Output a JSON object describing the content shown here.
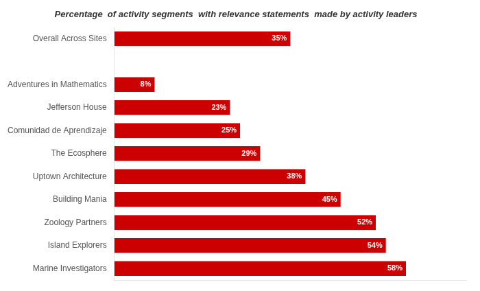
{
  "chart_data": {
    "type": "bar",
    "orientation": "horizontal",
    "title": "Percentage  of activity segments  with relevance statements  made by activity leaders",
    "categories": [
      "Overall Across Sites",
      null,
      "Adventures in Mathematics",
      "Jefferson House",
      "Comunidad de Aprendizaje",
      "The Ecosphere",
      "Uptown Architecture",
      "Building Mania",
      "Zoology Partners",
      "Island Explorers",
      "Marine Investigators"
    ],
    "values": [
      35,
      0,
      8,
      23,
      25,
      29,
      38,
      45,
      52,
      54,
      58
    ],
    "value_labels": [
      "35%",
      null,
      "8%",
      "23%",
      "25%",
      "29%",
      "38%",
      "45%",
      "52%",
      "54%",
      "58%"
    ],
    "data_labels": true,
    "color": "#CC0000",
    "xlim": [
      0,
      70
    ],
    "grid": false,
    "tick_labels": "y"
  }
}
